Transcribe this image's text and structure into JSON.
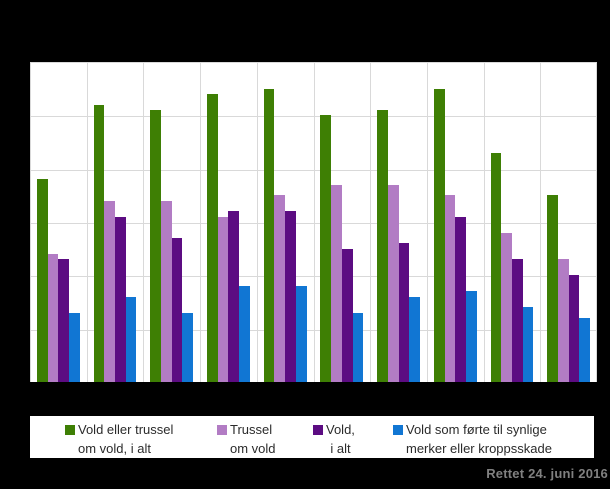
{
  "annotation": {
    "text": "Rettet 24. juni 2016",
    "color": "#808080"
  },
  "colors": {
    "background": "#000000",
    "plot_background": "#ffffff",
    "gridline": "#d9d9d9",
    "legend_background": "#ffffff",
    "legend_text": "#2b2b2b"
  },
  "chart_data": {
    "type": "bar",
    "title": "",
    "xlabel": "",
    "ylabel": "",
    "ylim": [
      0,
      6
    ],
    "gridline_step": 1,
    "grid": true,
    "x_axis_labels_visible": false,
    "y_axis_labels_visible": false,
    "legend_position": "bottom",
    "n_groups": 10,
    "categories": [
      "",
      "",
      "",
      "",
      "",
      "",
      "",
      "",
      "",
      ""
    ],
    "series": [
      {
        "name": "Vold eller trussel om vold, i alt",
        "legend_lines": [
          "Vold eller trussel",
          "om vold, i alt"
        ],
        "color": "#3e7f04",
        "values": [
          3.8,
          5.2,
          5.1,
          5.4,
          5.5,
          5.0,
          5.1,
          5.5,
          4.3,
          3.5
        ]
      },
      {
        "name": "Trussel om vold",
        "legend_lines": [
          "Trussel",
          "om vold"
        ],
        "color": "#b27cc4",
        "values": [
          2.4,
          3.4,
          3.4,
          3.1,
          3.5,
          3.7,
          3.7,
          3.5,
          2.8,
          2.3
        ]
      },
      {
        "name": "Vold, i alt",
        "legend_lines": [
          "Vold,",
          "i alt"
        ],
        "color": "#5c0c82",
        "values": [
          2.3,
          3.1,
          2.7,
          3.2,
          3.2,
          2.5,
          2.6,
          3.1,
          2.3,
          2.0
        ]
      },
      {
        "name": "Vold som førte til synlige merker eller kroppsskade",
        "legend_lines": [
          "Vold som førte til synlige",
          "merker eller kroppsskade"
        ],
        "color": "#1176d3",
        "values": [
          1.3,
          1.6,
          1.3,
          1.8,
          1.8,
          1.3,
          1.6,
          1.7,
          1.4,
          1.2
        ]
      }
    ]
  }
}
